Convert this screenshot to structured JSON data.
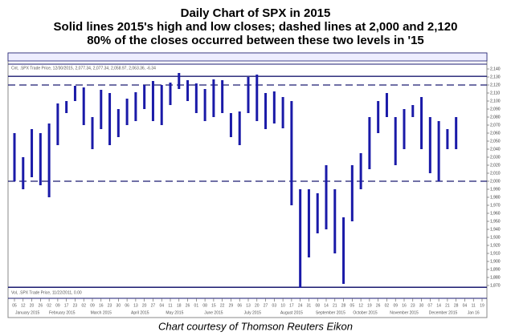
{
  "chart_data": {
    "type": "range_bar",
    "title": "Daily Chart of SPX in 2015",
    "subtitle": [
      "Solid lines 2015's high and low closes; dashed lines at 2,000 and 2,120",
      "80% of the closes occurred between these two levels in '15"
    ],
    "legend_text": "Cnt, .SPX Trade Price, 12/30/2015, 2,077.34, 2,077.34, 2,058.97, 2,063.36, -6.34",
    "volume_text": "Vol, .SPX Trade Price, 11/22/2011, 0.00",
    "caption": "Chart courtesy of Thomson Reuters Eikon",
    "categories": [
      "05",
      "12",
      "20",
      "26",
      "02",
      "09",
      "17",
      "23",
      "02",
      "09",
      "16",
      "23",
      "30",
      "06",
      "13",
      "20",
      "27",
      "04",
      "11",
      "18",
      "26",
      "01",
      "08",
      "15",
      "22",
      "29",
      "06",
      "13",
      "20",
      "27",
      "03",
      "10",
      "17",
      "24",
      "31",
      "08",
      "14",
      "21",
      "28",
      "05",
      "12",
      "19",
      "26",
      "02",
      "09",
      "16",
      "23",
      "30",
      "07",
      "14",
      "21",
      "28",
      "04",
      "11",
      "19"
    ],
    "months": [
      "January 2015",
      "February 2015",
      "March 2015",
      "April 2015",
      "May 2015",
      "June 2015",
      "July 2015",
      "August 2015",
      "September 2015",
      "October 2015",
      "November 2015",
      "December 2015",
      "Jan 16"
    ],
    "series": [
      {
        "name": "High",
        "color": "#1a1aa8",
        "values": [
          2060,
          2030,
          2065,
          2060,
          2072,
          2097,
          2100,
          2119,
          2117,
          2080,
          2114,
          2110,
          2090,
          2103,
          2111,
          2120,
          2125,
          2120,
          2123,
          2135,
          2126,
          2122,
          2115,
          2127,
          2126,
          2085,
          2087,
          2130,
          2133,
          2110,
          2112,
          2105,
          2100,
          1990,
          1990,
          1985,
          2020,
          1990,
          1955,
          2020,
          2035,
          2080,
          2100,
          2110,
          2080,
          2090,
          2095,
          2105,
          2080,
          2075,
          2065,
          2080,
          null,
          null,
          null
        ]
      },
      {
        "name": "Low",
        "color": "#1a1aa8",
        "values": [
          2000,
          1990,
          2005,
          1995,
          1980,
          2045,
          2085,
          2100,
          2070,
          2040,
          2065,
          2045,
          2055,
          2070,
          2075,
          2090,
          2075,
          2070,
          2095,
          2115,
          2100,
          2085,
          2075,
          2080,
          2085,
          2055,
          2045,
          2085,
          2075,
          2065,
          2072,
          2066,
          1970,
          1867,
          1905,
          1935,
          1940,
          1910,
          1872,
          1950,
          1990,
          2015,
          2060,
          2080,
          2020,
          2040,
          2080,
          2040,
          2010,
          2000,
          2040,
          2040,
          null,
          null,
          null
        ]
      }
    ],
    "reference_lines": [
      {
        "value": 2130.82,
        "style": "solid",
        "color": "#1a1a70"
      },
      {
        "value": 2120,
        "style": "dashed",
        "color": "#1a1a70"
      },
      {
        "value": 2000,
        "style": "dashed",
        "color": "#1a1a70"
      },
      {
        "value": 1867.61,
        "style": "solid",
        "color": "#1a1a70"
      }
    ],
    "ylim": [
      1868,
      2144
    ],
    "yticks": [
      {
        "value": 1870,
        "label": "1,870"
      },
      {
        "value": 1880,
        "label": "1,880"
      },
      {
        "value": 1890,
        "label": "1,890"
      },
      {
        "value": 1900,
        "label": "1,900"
      },
      {
        "value": 1910,
        "label": "1,910"
      },
      {
        "value": 1920,
        "label": "1,920"
      },
      {
        "value": 1930,
        "label": "1,930"
      },
      {
        "value": 1940,
        "label": "1,940"
      },
      {
        "value": 1950,
        "label": "1,950"
      },
      {
        "value": 1960,
        "label": "1,960"
      },
      {
        "value": 1970,
        "label": "1,970"
      },
      {
        "value": 1980,
        "label": "1,980"
      },
      {
        "value": 1990,
        "label": "1,990"
      },
      {
        "value": 2000,
        "label": "2,000"
      },
      {
        "value": 2010,
        "label": "2,010"
      },
      {
        "value": 2020,
        "label": "2,020"
      },
      {
        "value": 2030,
        "label": "2,030"
      },
      {
        "value": 2040,
        "label": "2,040"
      },
      {
        "value": 2050,
        "label": "2,050"
      },
      {
        "value": 2060,
        "label": "2,060"
      },
      {
        "value": 2070,
        "label": "2,070"
      },
      {
        "value": 2080,
        "label": "2,080"
      },
      {
        "value": 2090,
        "label": "2,090"
      },
      {
        "value": 2100,
        "label": "2,100"
      },
      {
        "value": 2110,
        "label": "2,110"
      },
      {
        "value": 2120,
        "label": "2,120"
      },
      {
        "value": 2130,
        "label": "2,130"
      },
      {
        "value": 2140,
        "label": "2,140"
      }
    ]
  }
}
